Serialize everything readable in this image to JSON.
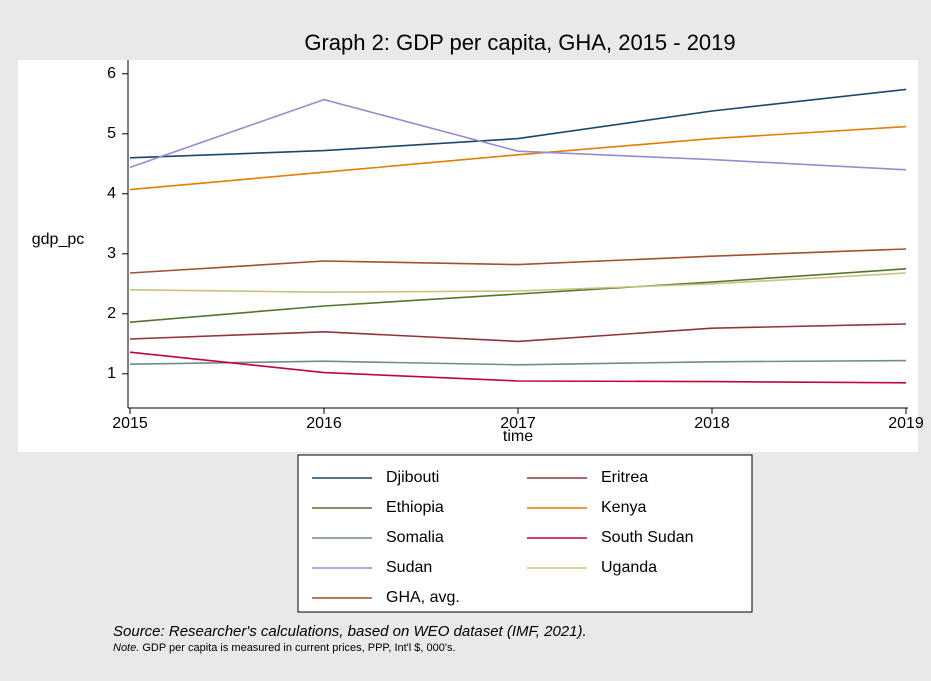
{
  "chart_data": {
    "type": "line",
    "title": "Graph 2: GDP per capita, GHA, 2015 - 2019",
    "x_label": "time",
    "y_label": "gdp_pc",
    "x": [
      2015,
      2016,
      2017,
      2018,
      2019
    ],
    "xlim": [
      2015,
      2019
    ],
    "xticks": [
      2015,
      2016,
      2017,
      2018,
      2019
    ],
    "ylim": [
      0.43,
      6.23
    ],
    "yticks": [
      1,
      2,
      3,
      4,
      5,
      6
    ],
    "grid": false,
    "legend": "bottom",
    "series": [
      {
        "name": "Djibouti",
        "color": "#1a476f",
        "values": [
          4.6,
          4.72,
          4.92,
          5.38,
          5.74
        ]
      },
      {
        "name": "Eritrea",
        "color": "#90353b",
        "values": [
          1.58,
          1.7,
          1.54,
          1.76,
          1.83
        ]
      },
      {
        "name": "Ethiopia",
        "color": "#55752f",
        "values": [
          1.86,
          2.13,
          2.33,
          2.53,
          2.75
        ]
      },
      {
        "name": "Kenya",
        "color": "#e37e00",
        "values": [
          4.07,
          4.36,
          4.65,
          4.92,
          5.12
        ]
      },
      {
        "name": "Somalia",
        "color": "#6e8e84",
        "values": [
          1.16,
          1.21,
          1.15,
          1.2,
          1.22
        ]
      },
      {
        "name": "South Sudan",
        "color": "#c10534",
        "values": [
          1.36,
          1.02,
          0.88,
          0.87,
          0.85
        ]
      },
      {
        "name": "Sudan",
        "color": "#938dd2",
        "values": [
          4.44,
          5.57,
          4.71,
          4.57,
          4.4
        ]
      },
      {
        "name": "Uganda",
        "color": "#cac27e",
        "values": [
          2.4,
          2.36,
          2.38,
          2.5,
          2.68
        ]
      },
      {
        "name": "GHA, avg.",
        "color": "#a0522d",
        "values": [
          2.68,
          2.88,
          2.82,
          2.96,
          3.08
        ]
      }
    ],
    "source": "Source: Researcher's calculations, based on WEO dataset (IMF, 2021).",
    "note_label": "Note.",
    "note": " GDP per capita is measured in current prices, PPP, Int'l $, 000's."
  }
}
